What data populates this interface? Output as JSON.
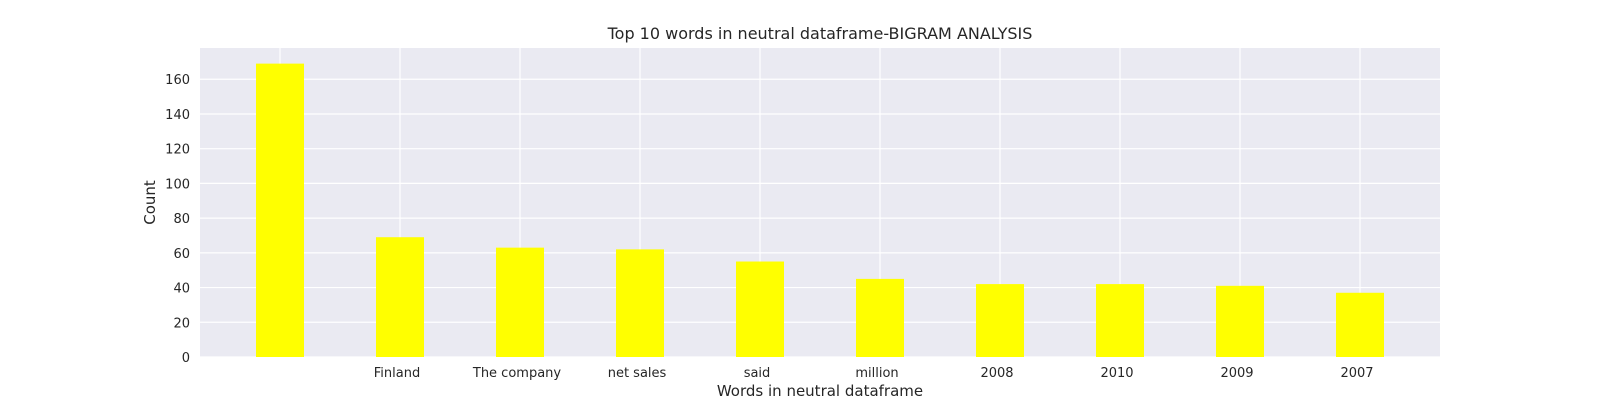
{
  "chart_data": {
    "type": "bar",
    "title": "Top 10 words in neutral dataframe-BIGRAM ANALYSIS",
    "xlabel": "Words in neutral dataframe",
    "ylabel": "Count",
    "categories": [
      "",
      "Finland",
      "The company",
      "net sales",
      "said",
      "million",
      "2008",
      "2010",
      "2009",
      "2007"
    ],
    "values": [
      169,
      69,
      63,
      62,
      55,
      45,
      42,
      42,
      41,
      37
    ],
    "ylim": [
      0,
      178
    ],
    "yticks": [
      0,
      20,
      40,
      60,
      80,
      100,
      120,
      140,
      160
    ],
    "grid": true,
    "bar_color": "#ffff00",
    "background_color": "#eaeaf2",
    "grid_color": "#ffffff"
  }
}
